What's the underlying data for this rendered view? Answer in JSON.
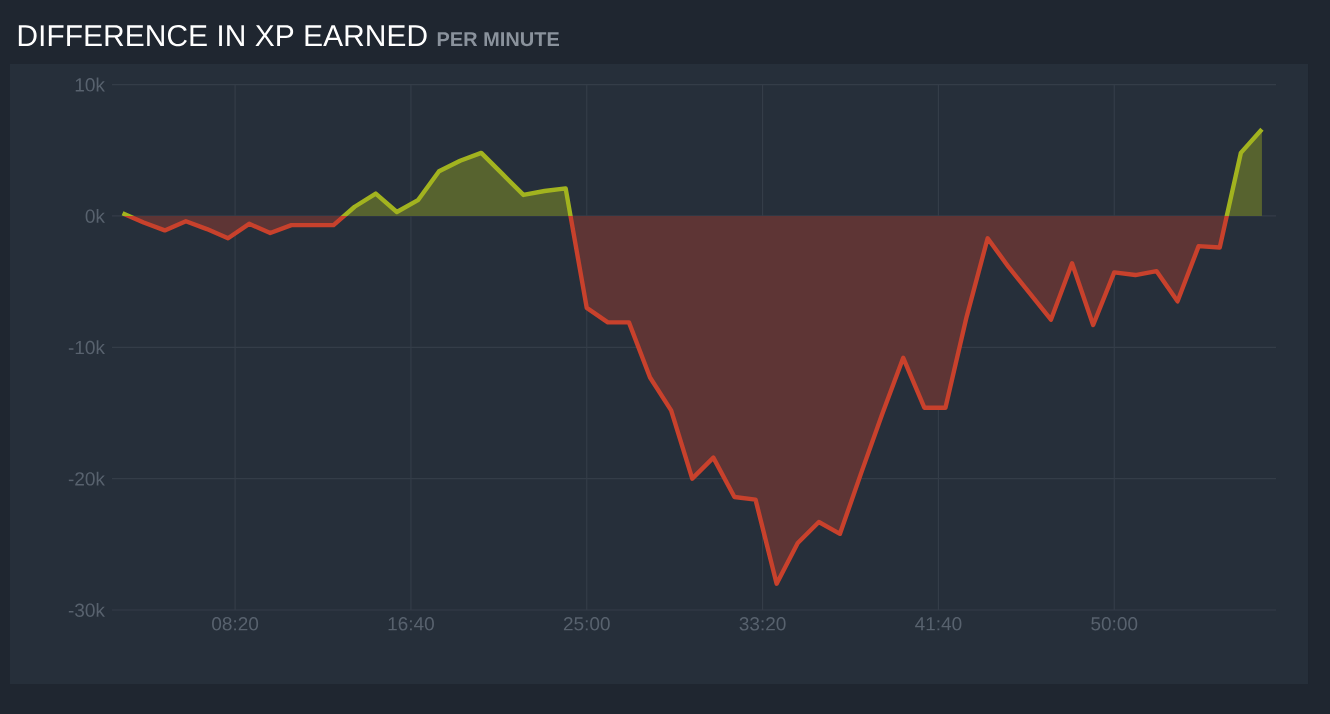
{
  "chart_data": {
    "type": "area",
    "title": "DIFFERENCE IN XP EARNED",
    "subtitle": "PER MINUTE",
    "x": [
      180,
      240,
      300,
      360,
      420,
      480,
      540,
      600,
      660,
      720,
      780,
      840,
      900,
      960,
      1020,
      1080,
      1140,
      1200,
      1260,
      1320,
      1380,
      1440,
      1500,
      1560,
      1620,
      1680,
      1740,
      1800,
      1860,
      1920,
      1980,
      2040,
      2100,
      2160,
      2220,
      2280,
      2340,
      2400,
      2460,
      2520,
      2580,
      2640,
      2700,
      2760,
      2820,
      2880,
      2940,
      3000,
      3060,
      3120,
      3180,
      3240,
      3300,
      3360,
      3420
    ],
    "values": [
      200,
      -500,
      -1100,
      -400,
      -1000,
      -1700,
      -600,
      -1300,
      -700,
      -700,
      -700,
      700,
      1700,
      300,
      1200,
      3400,
      4200,
      4800,
      3200,
      1600,
      1900,
      2100,
      -7000,
      -8100,
      -8100,
      -12300,
      -14800,
      -20000,
      -18400,
      -21400,
      -21600,
      -28000,
      -24900,
      -23300,
      -24200,
      -19600,
      -15100,
      -10800,
      -14600,
      -14600,
      -7700,
      -1700,
      -3900,
      -5900,
      -7900,
      -3600,
      -8300,
      -4300,
      -4500,
      -4200,
      -6500,
      -2300,
      -2400,
      4800,
      6600
    ],
    "colors": [
      "#a2b31f",
      "#c8412c",
      "#c8412c",
      "#c8412c",
      "#c8412c",
      "#c8412c",
      "#c8412c",
      "#c8412c",
      "#c8412c",
      "#c8412c",
      "#c8412c",
      "#a2b31f",
      "#a2b31f",
      "#a2b31f",
      "#a2b31f",
      "#a2b31f",
      "#a2b31f",
      "#a2b31f",
      "#a2b31f",
      "#a2b31f",
      "#a2b31f",
      "#a2b31f",
      "#c8412c",
      "#c8412c",
      "#c8412c",
      "#c8412c",
      "#c8412c",
      "#c8412c",
      "#c8412c",
      "#c8412c",
      "#c8412c",
      "#c8412c",
      "#c8412c",
      "#c8412c",
      "#c8412c",
      "#c8412c",
      "#c8412c",
      "#c8412c",
      "#c8412c",
      "#c8412c",
      "#c8412c",
      "#c8412c",
      "#c8412c",
      "#c8412c",
      "#c8412c",
      "#c8412c",
      "#c8412c",
      "#c8412c",
      "#c8412c",
      "#c8412c",
      "#c8412c",
      "#c8412c",
      "#c8412c",
      "#a2b31f",
      "#a2b31f"
    ],
    "xlim": [
      150,
      3460
    ],
    "ylim": [
      -30000,
      10000
    ],
    "xticks": [
      {
        "value": 500,
        "label": "08:20"
      },
      {
        "value": 1000,
        "label": "16:40"
      },
      {
        "value": 1500,
        "label": "25:00"
      },
      {
        "value": 2000,
        "label": "33:20"
      },
      {
        "value": 2500,
        "label": "41:40"
      },
      {
        "value": 3000,
        "label": "50:00"
      }
    ],
    "yticks": [
      {
        "value": -30000,
        "label": "-30k"
      },
      {
        "value": -20000,
        "label": "-20k"
      },
      {
        "value": -10000,
        "label": "-10k"
      },
      {
        "value": 0,
        "label": "0k"
      },
      {
        "value": 10000,
        "label": "10k"
      }
    ],
    "grid": true,
    "marker": "none"
  }
}
